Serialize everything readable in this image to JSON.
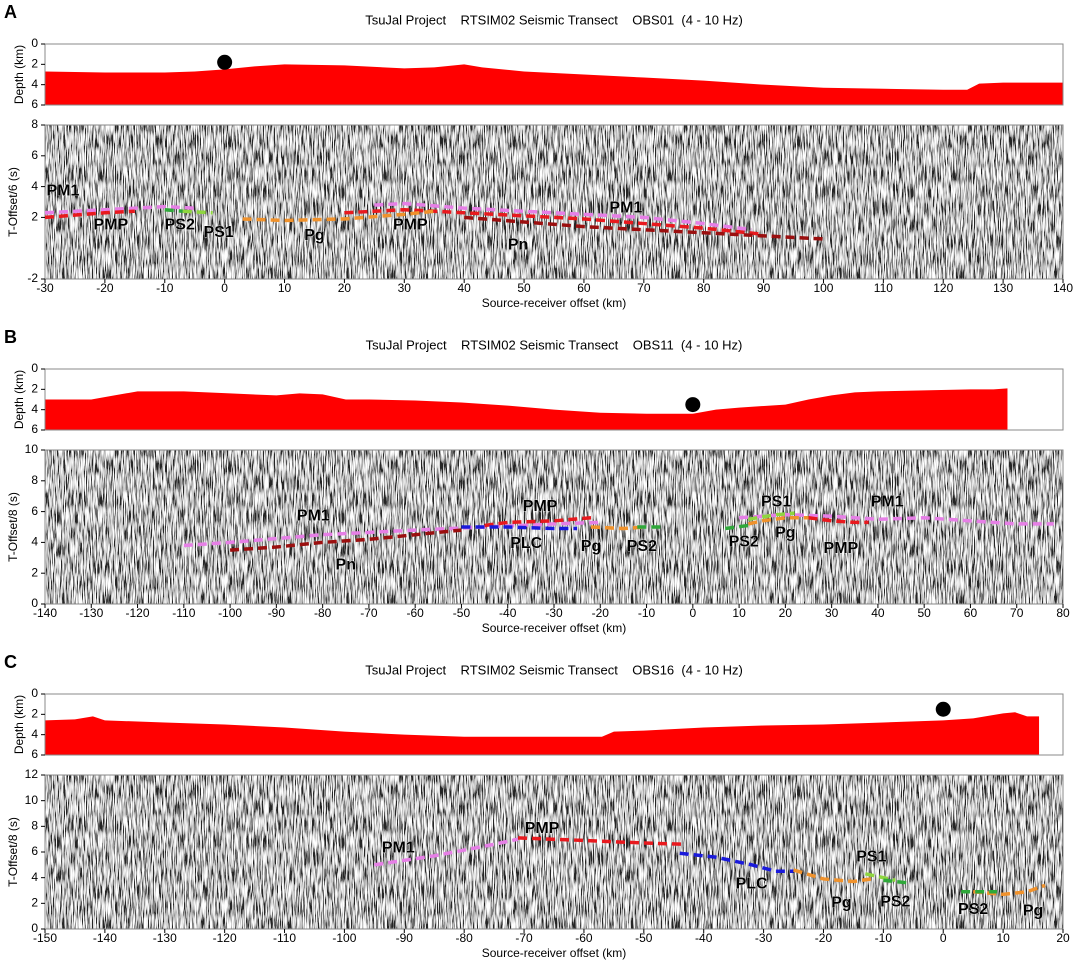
{
  "chart_data": [
    {
      "panel": "A",
      "title": "TsuJal Project    RTSIM02 Seismic Transect    OBS01  (4 - 10 Hz)",
      "bathymetry": {
        "type": "area",
        "ylabel": "Depth (km)",
        "ylim": [
          0,
          6
        ],
        "yticks": [
          0,
          2,
          4,
          6
        ],
        "inverted": true,
        "color": "#ff0000",
        "x": [
          -30,
          -20,
          -10,
          -5,
          0,
          5,
          10,
          20,
          30,
          35,
          40,
          43,
          50,
          60,
          70,
          80,
          90,
          100,
          110,
          120,
          124,
          126,
          130,
          140
        ],
        "values": [
          2.7,
          2.8,
          2.8,
          2.7,
          2.5,
          2.2,
          2.0,
          2.1,
          2.4,
          2.3,
          2.0,
          2.3,
          2.7,
          3.0,
          3.3,
          3.6,
          4.0,
          4.3,
          4.4,
          4.5,
          4.5,
          3.9,
          3.8,
          3.8
        ],
        "station": {
          "x": 0,
          "depth": 1.8
        }
      },
      "section": {
        "type": "line",
        "ylabel": "T-Offset/6 (s)",
        "xlabel": "Source-receiver offset (km)",
        "xlim": [
          -30,
          140
        ],
        "xticks": [
          -30,
          -20,
          -10,
          0,
          10,
          20,
          30,
          40,
          50,
          60,
          70,
          80,
          90,
          100,
          110,
          120,
          130,
          140
        ],
        "ylim": [
          -2,
          8
        ],
        "yticks": [
          -2,
          2,
          4,
          6,
          8
        ],
        "series": [
          {
            "color": "#e67fe6",
            "x": [
              -30,
              -20,
              -10,
              -5,
              null,
              25,
              30,
              40,
              50,
              60,
              70,
              80,
              88
            ],
            "values": [
              2.3,
              2.5,
              2.7,
              2.6,
              null,
              2.8,
              2.9,
              2.6,
              2.4,
              2.2,
              2.0,
              1.6,
              1.2
            ]
          },
          {
            "color": "#e8191e",
            "x": [
              -30,
              -20,
              -15,
              null,
              20,
              30,
              40,
              50,
              60,
              70,
              80,
              90
            ],
            "values": [
              2.0,
              2.3,
              2.4,
              null,
              2.3,
              2.5,
              2.3,
              2.1,
              1.9,
              1.6,
              1.3,
              0.9
            ]
          },
          {
            "color": "#9b0f0f",
            "x": [
              40,
              50,
              60,
              70,
              80,
              90,
              100
            ],
            "values": [
              2.0,
              1.7,
              1.4,
              1.2,
              1.0,
              0.8,
              0.6
            ]
          },
          {
            "color": "#f0922c",
            "x": [
              3,
              10,
              20,
              30,
              35
            ],
            "values": [
              1.9,
              1.8,
              1.9,
              2.2,
              2.4
            ]
          },
          {
            "color": "#2fa83a",
            "x": [
              -10,
              -7
            ],
            "values": [
              2.5,
              2.4
            ]
          },
          {
            "color": "#8fd640",
            "x": [
              -7,
              -2
            ],
            "values": [
              2.4,
              2.3
            ]
          }
        ],
        "annotations": [
          {
            "text": "PM1",
            "color": "#e67fe6",
            "x": -27,
            "y": 3.7
          },
          {
            "text": "PMP",
            "color": "#e8191e",
            "x": -19,
            "y": 1.5
          },
          {
            "text": "PS2",
            "color": "#2fa83a",
            "x": -7.5,
            "y": 1.5
          },
          {
            "text": "PS1",
            "color": "#8fd640",
            "x": -1,
            "y": 1.0
          },
          {
            "text": "Pg",
            "color": "#f0922c",
            "x": 15,
            "y": 0.8
          },
          {
            "text": "PMP",
            "color": "#e8191e",
            "x": 31,
            "y": 1.5
          },
          {
            "text": "Pn",
            "color": "#9b0f0f",
            "x": 49,
            "y": 0.2
          },
          {
            "text": "PM1",
            "color": "#e67fe6",
            "x": 67,
            "y": 2.6
          }
        ]
      }
    },
    {
      "panel": "B",
      "title": "TsuJal Project    RTSIM02 Seismic Transect    OBS11  (4 - 10 Hz)",
      "bathymetry": {
        "type": "area",
        "ylabel": "Depth (km)",
        "ylim": [
          0,
          6
        ],
        "yticks": [
          0,
          2,
          4,
          6
        ],
        "inverted": true,
        "color": "#ff0000",
        "x": [
          -140,
          -130,
          -125,
          -120,
          -110,
          -100,
          -90,
          -85,
          -80,
          -75,
          -70,
          -60,
          -50,
          -40,
          -30,
          -20,
          -10,
          0,
          5,
          10,
          20,
          25,
          30,
          35,
          40,
          50,
          60,
          65,
          68
        ],
        "values": [
          3.0,
          3.0,
          2.6,
          2.2,
          2.2,
          2.4,
          2.6,
          2.4,
          2.5,
          3.0,
          3.0,
          3.1,
          3.3,
          3.6,
          4.0,
          4.3,
          4.4,
          4.4,
          4.0,
          3.8,
          3.5,
          3.0,
          2.6,
          2.3,
          2.2,
          2.1,
          2.0,
          2.0,
          1.9
        ],
        "station": {
          "x": 0,
          "depth": 3.5
        }
      },
      "section": {
        "type": "line",
        "ylabel": "T-Offset/8 (s)",
        "xlabel": "Source-receiver offset (km)",
        "xlim": [
          -140,
          80
        ],
        "xticks": [
          -140,
          -130,
          -120,
          -110,
          -100,
          -90,
          -80,
          -70,
          -60,
          -50,
          -40,
          -30,
          -20,
          -10,
          0,
          10,
          20,
          30,
          40,
          50,
          60,
          70,
          80
        ],
        "ylim": [
          0,
          10
        ],
        "yticks": [
          0,
          2,
          4,
          6,
          8,
          10
        ],
        "series": [
          {
            "color": "#e67fe6",
            "x": [
              -110,
              -100,
              -80,
              -60,
              -45,
              -30,
              -20,
              null,
              10,
              20,
              30,
              40,
              50,
              60,
              70,
              78
            ],
            "values": [
              3.8,
              4.0,
              4.5,
              4.8,
              5.0,
              5.2,
              5.3,
              null,
              5.6,
              5.8,
              5.7,
              5.5,
              5.6,
              5.4,
              5.2,
              5.2
            ]
          },
          {
            "color": "#9b0f0f",
            "x": [
              -100,
              -90,
              -80,
              -70,
              -60,
              -50
            ],
            "values": [
              3.5,
              3.7,
              4.0,
              4.2,
              4.5,
              4.8
            ]
          },
          {
            "color": "#e8191e",
            "x": [
              -45,
              -40,
              -30,
              -22,
              null,
              25,
              30,
              35,
              38
            ],
            "values": [
              5.1,
              5.3,
              5.4,
              5.6,
              null,
              5.6,
              5.4,
              5.3,
              5.3
            ]
          },
          {
            "color": "#1a1adb",
            "x": [
              -50,
              -40,
              -30,
              -25
            ],
            "values": [
              5.0,
              5.0,
              4.9,
              4.9
            ]
          },
          {
            "color": "#f0922c",
            "x": [
              -22,
              -15,
              -10,
              null,
              12,
              15,
              20,
              25
            ],
            "values": [
              5.0,
              4.9,
              5.0,
              null,
              5.2,
              5.4,
              5.6,
              5.6
            ]
          },
          {
            "color": "#2fa83a",
            "x": [
              -12,
              -7,
              null,
              7,
              12
            ],
            "values": [
              5.0,
              5.0,
              null,
              4.9,
              5.1
            ]
          },
          {
            "color": "#8fd640",
            "x": [
              12,
              18,
              22
            ],
            "values": [
              5.5,
              5.8,
              5.9
            ]
          }
        ],
        "annotations": [
          {
            "text": "PM1",
            "color": "#e67fe6",
            "x": -82,
            "y": 5.7
          },
          {
            "text": "Pn",
            "color": "#9b0f0f",
            "x": -75,
            "y": 2.5
          },
          {
            "text": "PMP",
            "color": "#e8191e",
            "x": -33,
            "y": 6.3
          },
          {
            "text": "PLC",
            "color": "#1a1adb",
            "x": -36,
            "y": 3.9
          },
          {
            "text": "Pg",
            "color": "#f0922c",
            "x": -22,
            "y": 3.7
          },
          {
            "text": "PS2",
            "color": "#2fa83a",
            "x": -11,
            "y": 3.7
          },
          {
            "text": "PS1",
            "color": "#8fd640",
            "x": 18,
            "y": 6.6
          },
          {
            "text": "PS2",
            "color": "#2fa83a",
            "x": 11,
            "y": 4.0
          },
          {
            "text": "Pg",
            "color": "#f0922c",
            "x": 20,
            "y": 4.6
          },
          {
            "text": "PMP",
            "color": "#e8191e",
            "x": 32,
            "y": 3.6
          },
          {
            "text": "PM1",
            "color": "#e67fe6",
            "x": 42,
            "y": 6.6
          }
        ]
      }
    },
    {
      "panel": "C",
      "title": "TsuJal Project    RTSIM02 Seismic Transect    OBS16  (4 - 10 Hz)",
      "bathymetry": {
        "type": "area",
        "ylabel": "Depth (km)",
        "ylim": [
          0,
          6
        ],
        "yticks": [
          0,
          2,
          4,
          6
        ],
        "inverted": true,
        "color": "#ff0000",
        "x": [
          -150,
          -145,
          -142,
          -140,
          -130,
          -120,
          -110,
          -100,
          -90,
          -80,
          -70,
          -60,
          -57,
          -55,
          -50,
          -40,
          -30,
          -20,
          -10,
          0,
          5,
          10,
          12,
          14,
          16
        ],
        "values": [
          2.6,
          2.5,
          2.2,
          2.6,
          2.8,
          3.0,
          3.3,
          3.7,
          4.0,
          4.2,
          4.2,
          4.2,
          4.2,
          3.7,
          3.6,
          3.3,
          3.1,
          3.0,
          2.8,
          2.6,
          2.4,
          1.9,
          1.8,
          2.2,
          2.2
        ],
        "station": {
          "x": 0,
          "depth": 1.5
        }
      },
      "section": {
        "type": "line",
        "ylabel": "T-Offset/8 (s)",
        "xlabel": "Source-receiver offset (km)",
        "xlim": [
          -150,
          20
        ],
        "xticks": [
          -150,
          -140,
          -130,
          -120,
          -110,
          -100,
          -90,
          -80,
          -70,
          -60,
          -50,
          -40,
          -30,
          -20,
          -10,
          0,
          10,
          20
        ],
        "ylim": [
          0,
          12
        ],
        "yticks": [
          0,
          2,
          4,
          6,
          8,
          10,
          12
        ],
        "series": [
          {
            "color": "#e67fe6",
            "x": [
              -95,
              -85,
              -75,
              -71
            ],
            "values": [
              5.0,
              5.7,
              6.6,
              7.0
            ]
          },
          {
            "color": "#e8191e",
            "x": [
              -71,
              -60,
              -50,
              -43
            ],
            "values": [
              7.1,
              6.9,
              6.7,
              6.6
            ]
          },
          {
            "color": "#1a1adb",
            "x": [
              -44,
              -38,
              -32,
              -28,
              -25
            ],
            "values": [
              5.9,
              5.6,
              5.0,
              4.5,
              4.5
            ]
          },
          {
            "color": "#f0922c",
            "x": [
              -25,
              -20,
              -15,
              -12,
              null,
              5,
              10,
              14,
              17
            ],
            "values": [
              4.6,
              3.9,
              3.7,
              3.9,
              null,
              2.9,
              2.7,
              2.9,
              3.4
            ]
          },
          {
            "color": "#8fd640",
            "x": [
              -13,
              -10,
              -8
            ],
            "values": [
              4.3,
              4.0,
              3.8
            ]
          },
          {
            "color": "#2fa83a",
            "x": [
              -10,
              -6,
              null,
              3,
              9
            ],
            "values": [
              3.8,
              3.6,
              null,
              2.9,
              2.9
            ]
          }
        ],
        "annotations": [
          {
            "text": "PM1",
            "color": "#e67fe6",
            "x": -91,
            "y": 6.3
          },
          {
            "text": "PMP",
            "color": "#e8191e",
            "x": -67,
            "y": 7.8
          },
          {
            "text": "PLC",
            "color": "#1a1adb",
            "x": -32,
            "y": 3.5
          },
          {
            "text": "PS1",
            "color": "#8fd640",
            "x": -12,
            "y": 5.6
          },
          {
            "text": "Pg",
            "color": "#f0922c",
            "x": -17,
            "y": 2.0
          },
          {
            "text": "PS2",
            "color": "#2fa83a",
            "x": -8,
            "y": 2.1
          },
          {
            "text": "PS2",
            "color": "#2fa83a",
            "x": 5,
            "y": 1.5
          },
          {
            "text": "Pg",
            "color": "#f0922c",
            "x": 15,
            "y": 1.4
          }
        ]
      }
    }
  ]
}
